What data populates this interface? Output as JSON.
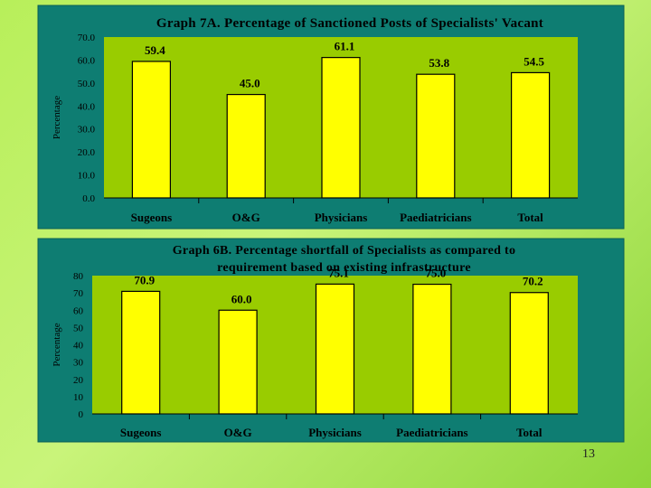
{
  "colors": {
    "panel": "#0e7d72",
    "plot": "#99cc00",
    "bar": "#ffff00",
    "bar_stroke": "#000000"
  },
  "page_number": "13",
  "chart_data": [
    {
      "type": "bar",
      "title": "Graph 7A. Percentage of Sanctioned Posts of Specialists' Vacant",
      "title_lines": [
        "Graph 7A. Percentage of Sanctioned Posts of Specialists' Vacant"
      ],
      "ylabel": "Percentage",
      "xlabel": "",
      "ylim": [
        0,
        70
      ],
      "yticks": [
        "0.0",
        "10.0",
        "20.0",
        "30.0",
        "40.0",
        "50.0",
        "60.0",
        "70.0"
      ],
      "categories": [
        "Sugeons",
        "O&G",
        "Physicians",
        "Paediatricians",
        "Total"
      ],
      "values": [
        59.4,
        45.0,
        61.1,
        53.8,
        54.5
      ],
      "data_labels": [
        "59.4",
        "45.0",
        "61.1",
        "53.8",
        "54.5"
      ],
      "grid": false,
      "legend": "none"
    },
    {
      "type": "bar",
      "title": "Graph 6B. Percentage shortfall of Specialists as compared to requirement based on existing infrastructure",
      "title_lines": [
        "Graph 6B. Percentage shortfall of Specialists as compared to",
        "requirement based on existing infrastructure"
      ],
      "ylabel": "Percentage",
      "xlabel": "",
      "ylim": [
        0,
        80
      ],
      "yticks": [
        "0",
        "10",
        "20",
        "30",
        "40",
        "50",
        "60",
        "70",
        "80"
      ],
      "categories": [
        "Sugeons",
        "O&G",
        "Physicians",
        "Paediatricians",
        "Total"
      ],
      "values": [
        70.9,
        60.0,
        75.1,
        75.0,
        70.2
      ],
      "data_labels": [
        "70.9",
        "60.0",
        "75.1",
        "75.0",
        "70.2"
      ],
      "grid": false,
      "legend": "none"
    }
  ]
}
